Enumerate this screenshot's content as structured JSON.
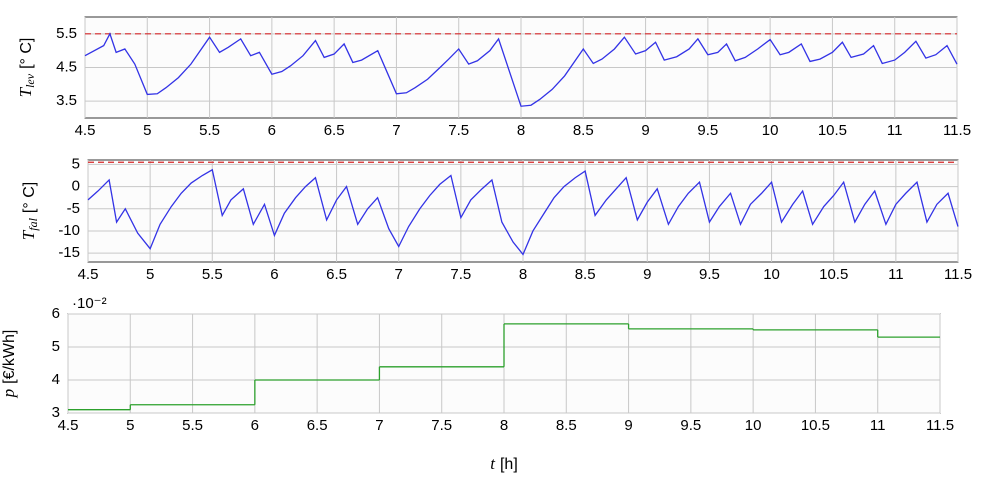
{
  "chart_data": [
    {
      "type": "line",
      "ylabel": {
        "symbol": "T",
        "subscript": "lev",
        "unit": "[° C]"
      },
      "xlim": [
        4.5,
        11.5
      ],
      "xticks": [
        4.5,
        5,
        5.5,
        6,
        6.5,
        7,
        7.5,
        8,
        8.5,
        9,
        9.5,
        10,
        10.5,
        11,
        11.5
      ],
      "ylim": [
        3,
        6
      ],
      "yticks": [
        3.5,
        4.5,
        5.5
      ],
      "grid": true,
      "threshold": 5.5,
      "threshold_color": "#d62728",
      "x": [
        4.5,
        4.65,
        4.7,
        4.75,
        4.82,
        4.9,
        5.0,
        5.08,
        5.15,
        5.25,
        5.35,
        5.5,
        5.58,
        5.65,
        5.75,
        5.83,
        5.9,
        6.0,
        6.08,
        6.15,
        6.25,
        6.35,
        6.42,
        6.5,
        6.58,
        6.65,
        6.72,
        6.85,
        7.0,
        7.08,
        7.15,
        7.25,
        7.35,
        7.42,
        7.5,
        7.58,
        7.65,
        7.75,
        7.82,
        8.0,
        8.08,
        8.15,
        8.25,
        8.35,
        8.5,
        8.58,
        8.65,
        8.75,
        8.83,
        8.92,
        9.0,
        9.08,
        9.15,
        9.25,
        9.35,
        9.42,
        9.5,
        9.58,
        9.65,
        9.72,
        9.8,
        9.9,
        10.0,
        10.08,
        10.15,
        10.25,
        10.32,
        10.4,
        10.5,
        10.58,
        10.65,
        10.75,
        10.83,
        10.9,
        11.0,
        11.08,
        11.17,
        11.25,
        11.33,
        11.42,
        11.5
      ],
      "series": [
        {
          "color": "#3333e6",
          "values": [
            4.85,
            5.15,
            5.5,
            4.95,
            5.05,
            4.6,
            3.7,
            3.72,
            3.9,
            4.2,
            4.6,
            5.4,
            4.95,
            5.1,
            5.35,
            4.85,
            4.95,
            4.3,
            4.38,
            4.55,
            4.85,
            5.3,
            4.8,
            4.9,
            5.2,
            4.65,
            4.72,
            5.0,
            3.72,
            3.75,
            3.9,
            4.15,
            4.5,
            4.75,
            5.05,
            4.6,
            4.7,
            5.0,
            5.35,
            3.35,
            3.38,
            3.55,
            3.85,
            4.25,
            5.05,
            4.62,
            4.75,
            5.05,
            5.4,
            4.9,
            5.0,
            5.25,
            4.72,
            4.82,
            5.05,
            5.35,
            4.88,
            4.95,
            5.2,
            4.7,
            4.8,
            5.05,
            5.33,
            4.88,
            4.95,
            5.2,
            4.68,
            4.75,
            4.95,
            5.25,
            4.8,
            4.9,
            5.15,
            4.62,
            4.72,
            4.95,
            5.28,
            4.78,
            4.88,
            5.15,
            4.6
          ]
        }
      ]
    },
    {
      "type": "line",
      "ylabel": {
        "symbol": "T",
        "subscript": "fal",
        "unit": "[° C]"
      },
      "xlim": [
        4.5,
        11.5
      ],
      "xticks": [
        4.5,
        5,
        5.5,
        6,
        6.5,
        7,
        7.5,
        8,
        8.5,
        9,
        9.5,
        10,
        10.5,
        11,
        11.5
      ],
      "ylim": [
        -17,
        6
      ],
      "yticks": [
        5,
        0,
        -5,
        -10,
        -15
      ],
      "grid": true,
      "threshold": 5.5,
      "threshold_color": "#d62728",
      "x": [
        4.5,
        4.58,
        4.67,
        4.73,
        4.8,
        4.9,
        5.0,
        5.08,
        5.17,
        5.25,
        5.33,
        5.42,
        5.5,
        5.58,
        5.65,
        5.75,
        5.83,
        5.92,
        6.0,
        6.08,
        6.17,
        6.25,
        6.33,
        6.42,
        6.5,
        6.58,
        6.67,
        6.75,
        6.83,
        6.92,
        7.0,
        7.08,
        7.17,
        7.25,
        7.33,
        7.42,
        7.5,
        7.58,
        7.67,
        7.75,
        7.83,
        7.92,
        8.0,
        8.08,
        8.17,
        8.25,
        8.33,
        8.42,
        8.5,
        8.58,
        8.67,
        8.75,
        8.83,
        8.92,
        9.0,
        9.08,
        9.17,
        9.25,
        9.33,
        9.42,
        9.5,
        9.58,
        9.67,
        9.75,
        9.83,
        9.92,
        10.0,
        10.08,
        10.17,
        10.25,
        10.33,
        10.42,
        10.5,
        10.58,
        10.67,
        10.75,
        10.83,
        10.92,
        11.0,
        11.08,
        11.17,
        11.25,
        11.33,
        11.42,
        11.5
      ],
      "series": [
        {
          "color": "#3333e6",
          "values": [
            -3,
            -1,
            1.5,
            -8,
            -5,
            -10.5,
            -14,
            -8.5,
            -4.5,
            -1.5,
            0.8,
            2.5,
            3.8,
            -6.5,
            -3,
            -0.5,
            -8.5,
            -4,
            -11,
            -6,
            -2.5,
            0,
            2,
            -7.5,
            -3,
            0,
            -8.5,
            -5,
            -2.5,
            -9.5,
            -13.5,
            -9,
            -5,
            -2,
            0.5,
            2.5,
            -7,
            -3,
            -0.5,
            1.5,
            -8,
            -12.5,
            -15.3,
            -10,
            -6,
            -2.5,
            0,
            2,
            3.5,
            -6.5,
            -3,
            -0.5,
            2,
            -7.5,
            -3.5,
            -0.5,
            -8.5,
            -4.5,
            -1.5,
            1,
            -8,
            -4.5,
            -1.5,
            -8.5,
            -4,
            -1.5,
            1,
            -8,
            -4,
            -1,
            -8.5,
            -4.5,
            -2,
            1,
            -8,
            -4,
            -1,
            -8.5,
            -4,
            -1.5,
            1,
            -8,
            -4,
            -1.5,
            -9
          ]
        }
      ]
    },
    {
      "type": "step",
      "ylabel": {
        "symbol": "p",
        "unit": "[€/kWh]"
      },
      "xlabel": {
        "symbol": "t",
        "unit": "[h]"
      },
      "y_multiplier": "·10⁻²",
      "xlim": [
        4.5,
        11.5
      ],
      "xticks": [
        4.5,
        5,
        5.5,
        6,
        6.5,
        7,
        7.5,
        8,
        8.5,
        9,
        9.5,
        10,
        10.5,
        11,
        11.5
      ],
      "ylim": [
        3,
        6
      ],
      "yticks": [
        3,
        4,
        5,
        6
      ],
      "grid": true,
      "x": [
        4.5,
        5,
        6,
        7,
        8,
        9,
        10,
        11
      ],
      "series": [
        {
          "color": "#2ca02c",
          "values": [
            3.1,
            3.25,
            4.0,
            4.4,
            5.7,
            5.55,
            5.52,
            5.3
          ]
        }
      ]
    }
  ]
}
